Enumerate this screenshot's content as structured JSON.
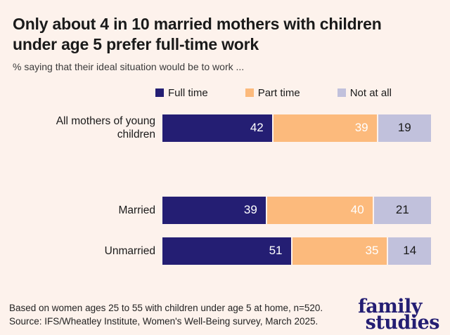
{
  "header": {
    "title": "Only about 4 in 10 married mothers with children under age 5 prefer full-time work",
    "subtitle": "% saying that their ideal situation would be to work ..."
  },
  "chart_data": {
    "type": "bar",
    "variant": "horizontal-stacked",
    "categories": [
      "All mothers of young children",
      "Married",
      "Unmarried"
    ],
    "series": [
      {
        "name": "Full time",
        "color": "#241e73",
        "values": [
          42,
          39,
          51
        ]
      },
      {
        "name": "Part time",
        "color": "#fcba7c",
        "values": [
          39,
          40,
          35
        ]
      },
      {
        "name": "Not at all",
        "color": "#c1c1dc",
        "values": [
          19,
          21,
          14
        ]
      }
    ],
    "title": "Only about 4 in 10 married mothers with children under age 5 prefer full-time work",
    "xlabel": "",
    "ylabel": "",
    "xlim": [
      0,
      100
    ],
    "grid": false,
    "legend_position": "top",
    "value_labels": "inside-end"
  },
  "colors": {
    "background": "#fdf2ec",
    "full_time": "#241e73",
    "part_time": "#fcba7c",
    "not_at_all": "#c1c1dc",
    "text": "#1a1a1a",
    "logo": "#241e73"
  },
  "footer": {
    "note": "Based on women ages 25 to 55 with children under age 5 at home, n=520.",
    "source": "Source: IFS/Wheatley Institute, Women's Well-Being survey, March 2025."
  },
  "logo": {
    "line1": "family",
    "line2": "studies"
  }
}
